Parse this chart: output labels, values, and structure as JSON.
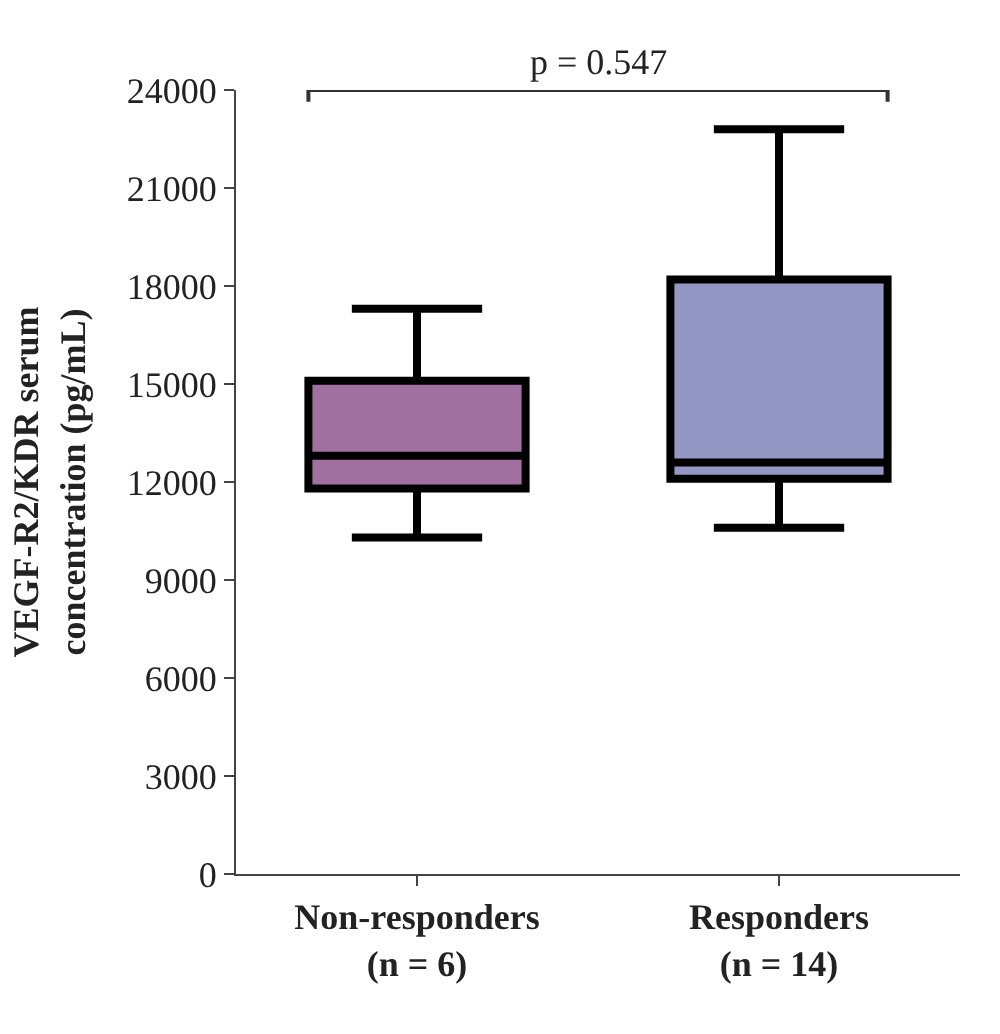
{
  "chart_data": {
    "type": "box",
    "ylabel": "VEGF-R2/KDR serum\nconcentration (pg/mL)",
    "categories": [
      "Non-responders\n(n = 6)",
      "Responders\n(n = 14)"
    ],
    "boxes": [
      {
        "low": 10300,
        "q1": 11800,
        "median": 12800,
        "q3": 15100,
        "high": 17300
      },
      {
        "low": 10600,
        "q1": 12100,
        "median": 12600,
        "q3": 18200,
        "high": 22800
      }
    ],
    "colors": [
      "#a070a0",
      "#9496c4"
    ],
    "ylim": [
      0,
      24000
    ],
    "yticks": [
      0,
      3000,
      6000,
      9000,
      12000,
      15000,
      18000,
      21000,
      24000
    ],
    "annotations": [
      "p = 0.547"
    ]
  }
}
